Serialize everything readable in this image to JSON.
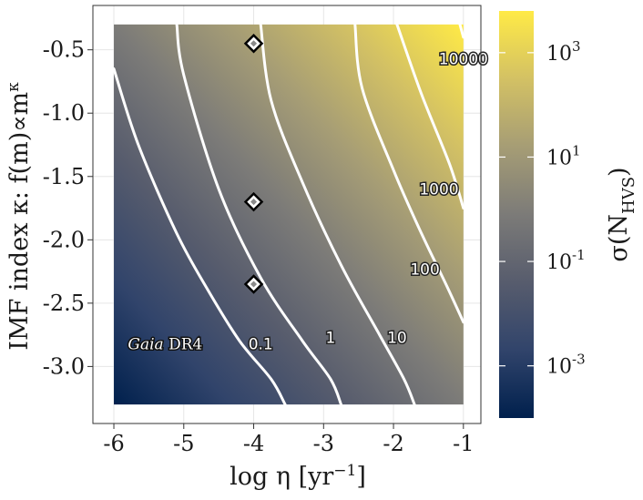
{
  "chart_data": {
    "type": "heatmap",
    "xlabel": "log η [yr",
    "xlabel_sup": "−1",
    "xlabel_end": "]",
    "ylabel": "IMF index κ: f(m)∝m",
    "ylabel_sup": "κ",
    "colorbar_label": "σ(N",
    "colorbar_label_sub": "HVS",
    "colorbar_label_end": ")",
    "xlim": [
      -6.3,
      -0.75
    ],
    "ylim": [
      -3.45,
      -0.15
    ],
    "data_extent": {
      "x": [
        -6.0,
        -1.0
      ],
      "y": [
        -3.3,
        -0.3
      ]
    },
    "x_ticks": [
      {
        "value": -6,
        "label": "-6"
      },
      {
        "value": -5,
        "label": "-5"
      },
      {
        "value": -4,
        "label": "-4"
      },
      {
        "value": -3,
        "label": "-3"
      },
      {
        "value": -2,
        "label": "-2"
      },
      {
        "value": -1,
        "label": "-1"
      }
    ],
    "y_ticks": [
      {
        "value": -0.5,
        "label": "-0.5"
      },
      {
        "value": -1.0,
        "label": "-1.0"
      },
      {
        "value": -1.5,
        "label": "-1.5"
      },
      {
        "value": -2.0,
        "label": "-2.0"
      },
      {
        "value": -2.5,
        "label": "-2.5"
      },
      {
        "value": -3.0,
        "label": "-3.0"
      }
    ],
    "colorbar": {
      "scale": "log",
      "min_exponent": -4.0,
      "max_exponent": 3.8,
      "colormap": [
        "#00204d",
        "#31446b",
        "#575c6d",
        "#7c7b78",
        "#a69d75",
        "#d3c164",
        "#ffea46"
      ],
      "ticks": [
        {
          "exponent": -3,
          "base": "10",
          "sup": "-3"
        },
        {
          "exponent": -1,
          "base": "10",
          "sup": "-1"
        },
        {
          "exponent": 1,
          "base": "10",
          "sup": "1"
        },
        {
          "exponent": 3,
          "base": "10",
          "sup": "3"
        }
      ]
    },
    "contours": [
      {
        "level": "0.1",
        "points": [
          [
            -6.0,
            -0.65
          ],
          [
            -5.65,
            -1.25
          ],
          [
            -5.1,
            -1.95
          ],
          [
            -4.65,
            -2.4
          ],
          [
            -4.2,
            -2.8
          ],
          [
            -3.75,
            -3.1
          ],
          [
            -3.55,
            -3.3
          ]
        ]
      },
      {
        "level": "1",
        "points": [
          [
            -5.1,
            -0.3
          ],
          [
            -5.0,
            -0.7
          ],
          [
            -4.5,
            -1.6
          ],
          [
            -3.9,
            -2.3
          ],
          [
            -3.3,
            -2.8
          ],
          [
            -2.9,
            -3.1
          ],
          [
            -2.75,
            -3.3
          ]
        ]
      },
      {
        "level": "10",
        "points": [
          [
            -3.9,
            -0.3
          ],
          [
            -3.75,
            -0.9
          ],
          [
            -3.3,
            -1.55
          ],
          [
            -2.75,
            -2.2
          ],
          [
            -2.2,
            -2.75
          ],
          [
            -1.85,
            -3.1
          ],
          [
            -1.7,
            -3.3
          ]
        ]
      },
      {
        "level": "100",
        "points": [
          [
            -2.55,
            -0.3
          ],
          [
            -2.45,
            -0.8
          ],
          [
            -2.0,
            -1.45
          ],
          [
            -1.6,
            -1.95
          ],
          [
            -1.25,
            -2.35
          ],
          [
            -1.0,
            -2.65
          ]
        ]
      },
      {
        "level": "1000",
        "points": [
          [
            -1.95,
            -0.3
          ],
          [
            -1.6,
            -0.85
          ],
          [
            -1.2,
            -1.4
          ],
          [
            -1.0,
            -1.75
          ]
        ]
      },
      {
        "level": "10000",
        "points": [
          [
            -1.05,
            -0.3
          ],
          [
            -1.0,
            -0.4
          ]
        ]
      }
    ],
    "contour_labels": [
      {
        "text": "0.1",
        "x": -3.9,
        "y": -2.82
      },
      {
        "text": "1",
        "x": -2.9,
        "y": -2.77
      },
      {
        "text": "10",
        "x": -1.95,
        "y": -2.77
      },
      {
        "text": "100",
        "x": -1.55,
        "y": -2.23
      },
      {
        "text": "1000",
        "x": -1.35,
        "y": -1.6
      },
      {
        "text": "10000",
        "x": -1.0,
        "y": -0.57
      }
    ],
    "markers": [
      {
        "x": -4.0,
        "y": -0.45
      },
      {
        "x": -4.0,
        "y": -1.7
      },
      {
        "x": -4.0,
        "y": -2.35
      }
    ],
    "annotation": {
      "italic": "Gaia",
      "rest": " DR4",
      "x": -5.8,
      "y": -2.82
    }
  }
}
